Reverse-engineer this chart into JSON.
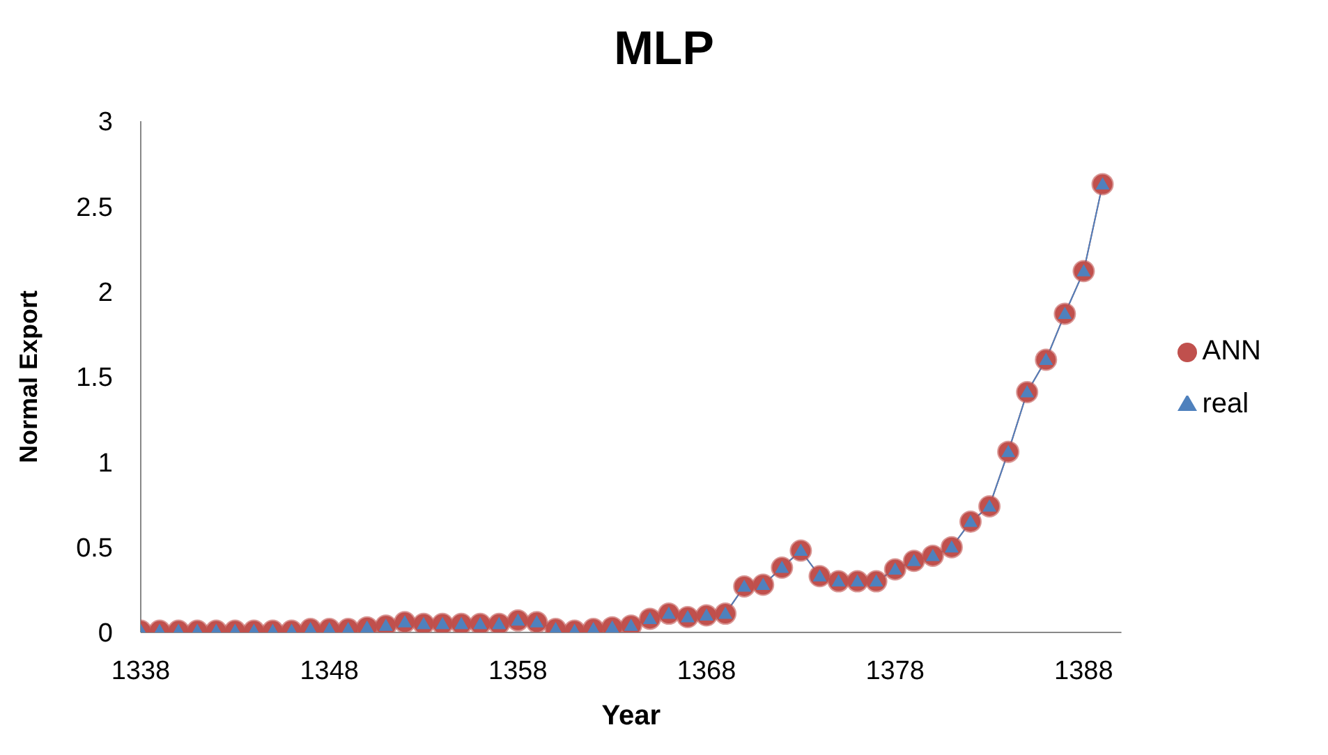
{
  "chart_data": {
    "type": "line",
    "title": "MLP",
    "xlabel": "Year",
    "ylabel": "Normal Export",
    "x": [
      1338,
      1339,
      1340,
      1341,
      1342,
      1343,
      1344,
      1345,
      1346,
      1347,
      1348,
      1349,
      1350,
      1351,
      1352,
      1353,
      1354,
      1355,
      1356,
      1357,
      1358,
      1359,
      1360,
      1361,
      1362,
      1363,
      1364,
      1365,
      1366,
      1367,
      1368,
      1369,
      1370,
      1371,
      1372,
      1373,
      1374,
      1375,
      1376,
      1377,
      1378,
      1379,
      1380,
      1381,
      1382,
      1383,
      1384,
      1385,
      1386,
      1387,
      1388,
      1389
    ],
    "series": [
      {
        "name": "ANN",
        "color": "#c0504d",
        "marker": "circle",
        "values": [
          0.01,
          0.01,
          0.01,
          0.01,
          0.01,
          0.01,
          0.01,
          0.01,
          0.01,
          0.02,
          0.02,
          0.02,
          0.03,
          0.04,
          0.06,
          0.05,
          0.05,
          0.05,
          0.05,
          0.05,
          0.07,
          0.06,
          0.02,
          0.01,
          0.02,
          0.03,
          0.04,
          0.08,
          0.11,
          0.09,
          0.1,
          0.11,
          0.27,
          0.28,
          0.38,
          0.48,
          0.33,
          0.3,
          0.3,
          0.3,
          0.37,
          0.42,
          0.45,
          0.5,
          0.65,
          0.74,
          1.06,
          1.41,
          1.6,
          1.87,
          2.12,
          2.63
        ]
      },
      {
        "name": "real",
        "color": "#4f81bd",
        "marker": "triangle",
        "values": [
          0.01,
          0.01,
          0.01,
          0.01,
          0.01,
          0.01,
          0.01,
          0.01,
          0.01,
          0.02,
          0.02,
          0.02,
          0.03,
          0.04,
          0.06,
          0.05,
          0.05,
          0.05,
          0.05,
          0.05,
          0.07,
          0.06,
          0.02,
          0.01,
          0.02,
          0.03,
          0.04,
          0.08,
          0.11,
          0.09,
          0.1,
          0.11,
          0.27,
          0.28,
          0.38,
          0.48,
          0.33,
          0.3,
          0.3,
          0.3,
          0.37,
          0.42,
          0.45,
          0.5,
          0.65,
          0.74,
          1.06,
          1.41,
          1.6,
          1.87,
          2.12,
          2.63
        ]
      }
    ],
    "xlim": [
      1338,
      1390
    ],
    "xticks": [
      1338,
      1348,
      1358,
      1368,
      1378,
      1388
    ],
    "ylim": [
      0,
      3
    ],
    "yticks": [
      0,
      0.5,
      1,
      1.5,
      2,
      2.5,
      3
    ],
    "grid": false,
    "legend": "right"
  }
}
